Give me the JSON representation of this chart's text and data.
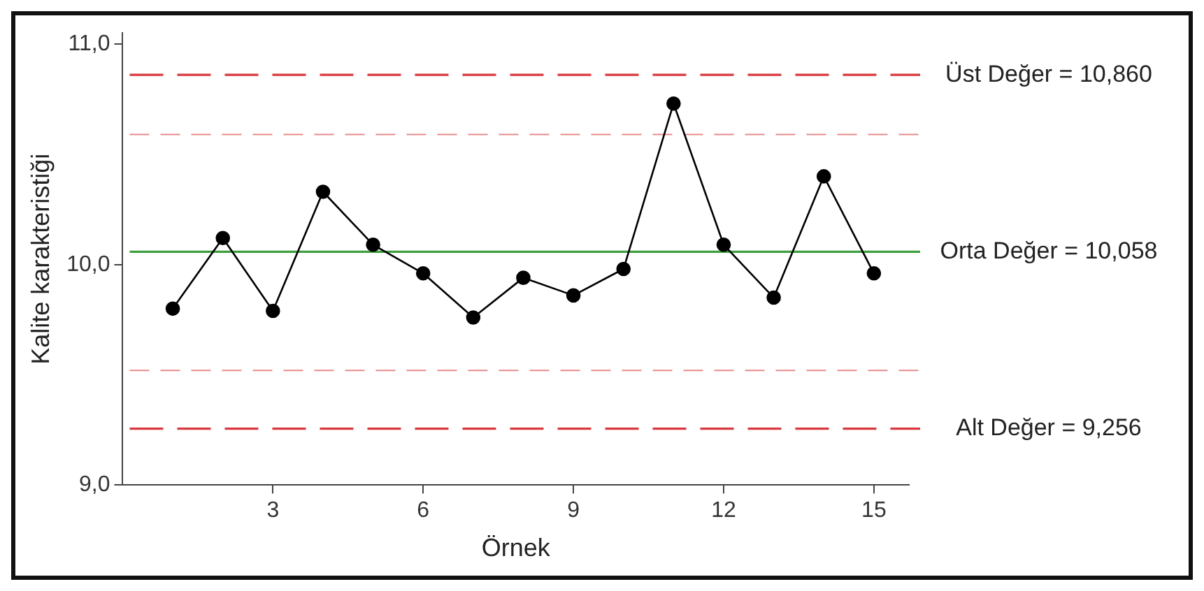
{
  "chart_data": {
    "type": "line",
    "xlabel": "Örnek",
    "ylabel": "Kalite karakteristiği",
    "x": [
      1,
      2,
      3,
      4,
      5,
      6,
      7,
      8,
      9,
      10,
      11,
      12,
      13,
      14,
      15
    ],
    "series": [
      {
        "color": "#000000",
        "values": [
          9.8,
          10.12,
          9.79,
          10.33,
          10.09,
          9.96,
          9.76,
          9.94,
          9.86,
          9.98,
          10.73,
          10.09,
          9.85,
          10.4,
          9.96
        ]
      }
    ],
    "xlim": [
      0,
      15.7
    ],
    "xticks": [
      3,
      6,
      9,
      12,
      15
    ],
    "ylim": [
      9,
      11.05
    ],
    "yticks": [
      {
        "value": 9,
        "label": "9,0"
      },
      {
        "value": 10,
        "label": "10,0"
      },
      {
        "value": 11,
        "label": "11,0"
      }
    ],
    "ref_lines": [
      {
        "axis": "y",
        "value": 10.86,
        "label": "Üst Değer = 10,860",
        "color": "#d9393e",
        "line_style": "dashed"
      },
      {
        "axis": "y",
        "value": 10.59,
        "label": null,
        "color": "#e88a8c",
        "line_style": "dashed"
      },
      {
        "axis": "y",
        "value": 10.058,
        "label": "Orta Değer = 10,058",
        "color": "#3f9f3f",
        "line_style": "solid"
      },
      {
        "axis": "y",
        "value": 9.52,
        "label": null,
        "color": "#e88a8c",
        "line_style": "dashed"
      },
      {
        "axis": "y",
        "value": 9.256,
        "label": "Alt Değer = 9,256",
        "color": "#d9393e",
        "line_style": "dashed"
      }
    ],
    "marker": "circle",
    "line_style": "solid",
    "grid": false,
    "legend": false
  }
}
